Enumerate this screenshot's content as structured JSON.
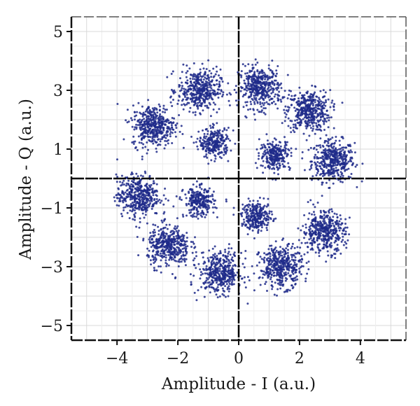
{
  "chart_data": {
    "type": "scatter",
    "title": "",
    "xlabel": "Amplitude - I (a.u.)",
    "ylabel": "Amplitude - Q (a.u.)",
    "xlim": [
      -5.5,
      5.5
    ],
    "ylim": [
      -5.5,
      5.5
    ],
    "xticks": [
      -4,
      -2,
      0,
      2,
      4
    ],
    "yticks": [
      -5,
      -3,
      -1,
      1,
      3,
      5
    ],
    "xtick_labels": [
      "−4",
      "−2",
      "0",
      "2",
      "4"
    ],
    "ytick_labels": [
      "−5",
      "−3",
      "−1",
      "1",
      "3",
      "5"
    ],
    "grid": true,
    "legend": "none",
    "marker_color": "#1f2a8a",
    "series": [
      {
        "description": "outer ring of points (radius ~3.3)",
        "clusters": [
          {
            "center": [
              3.1,
              0.6
            ],
            "spread": 0.35
          },
          {
            "center": [
              2.3,
              2.3
            ],
            "spread": 0.35
          },
          {
            "center": [
              0.7,
              3.1
            ],
            "spread": 0.35
          },
          {
            "center": [
              -1.3,
              3.0
            ],
            "spread": 0.35
          },
          {
            "center": [
              -2.8,
              1.8
            ],
            "spread": 0.35
          },
          {
            "center": [
              -3.3,
              -0.6
            ],
            "spread": 0.35
          },
          {
            "center": [
              -2.3,
              -2.3
            ],
            "spread": 0.35
          },
          {
            "center": [
              -0.6,
              -3.2
            ],
            "spread": 0.35
          },
          {
            "center": [
              1.4,
              -3.0
            ],
            "spread": 0.35
          },
          {
            "center": [
              2.8,
              -1.8
            ],
            "spread": 0.35
          }
        ]
      },
      {
        "description": "inner points",
        "clusters": [
          {
            "center": [
              1.2,
              0.8
            ],
            "spread": 0.25
          },
          {
            "center": [
              -0.8,
              1.2
            ],
            "spread": 0.25
          },
          {
            "center": [
              -1.3,
              -0.8
            ],
            "spread": 0.25
          },
          {
            "center": [
              0.6,
              -1.3
            ],
            "spread": 0.25
          }
        ]
      }
    ]
  }
}
